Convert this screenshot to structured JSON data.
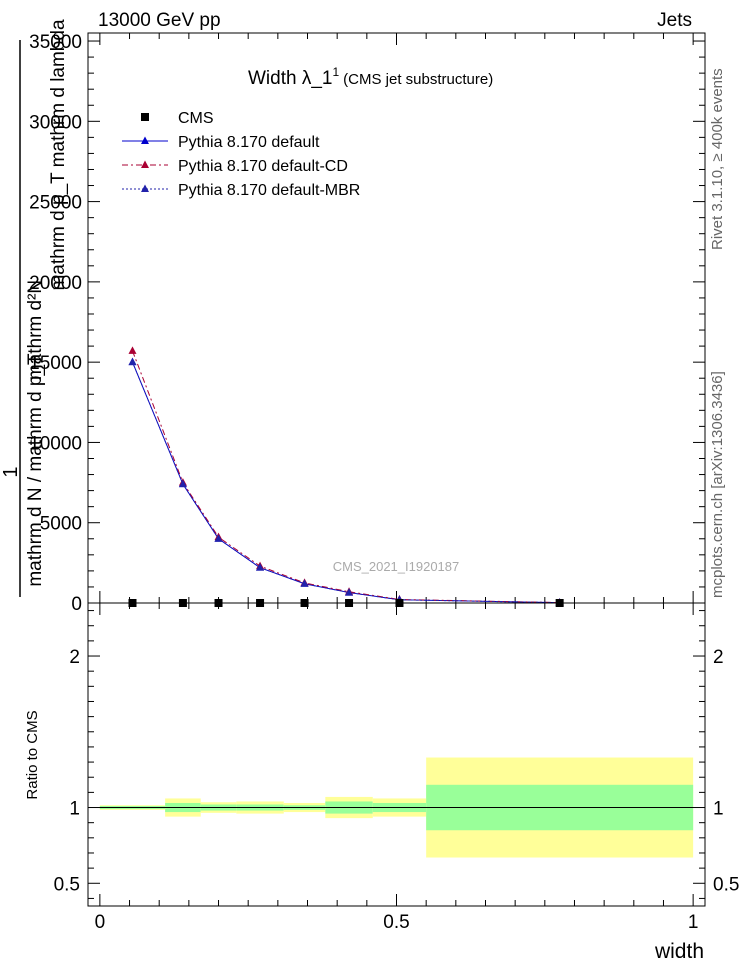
{
  "header": {
    "left": "13000 GeV pp",
    "right": "Jets"
  },
  "side_labels": {
    "rivet": "Rivet 3.1.10, ≥ 400k events",
    "mcplots": "mcplots.cern.ch [arXiv:1306.3436]"
  },
  "watermark": "CMS_2021_I1920187",
  "colors": {
    "cms": "#000000",
    "default": "#0000cc",
    "cd": "#aa0033",
    "mbr": "#2222aa",
    "band_outer": "#ffff99",
    "band_inner": "#99ff99"
  },
  "chart_data": [
    {
      "type": "line",
      "title": "Width λ_1",
      "title_sup": "1",
      "title_note": "(CMS jet substructure)",
      "ylabel_numerator": "mathrm d²N",
      "ylabel_denominator": "mathrm d p_T mathrm d lambda",
      "ylabel_prefix": "1",
      "ylabel_prefix_den": "mathrm d N / mathrm d p_T",
      "xlim": [
        -0.02,
        1.02
      ],
      "ylim": [
        0,
        35500
      ],
      "yticks": [
        0,
        5000,
        10000,
        15000,
        20000,
        25000,
        30000,
        35000
      ],
      "ytick_labels": [
        "0",
        "5000",
        "10000",
        "15000",
        "20000",
        "25000",
        "30000",
        "35000"
      ],
      "legend_position": "top-left",
      "legend": [
        {
          "label": "CMS",
          "marker": "square",
          "color": "#000000",
          "line": "none"
        },
        {
          "label": "Pythia 8.170 default",
          "marker": "triangle",
          "color": "#0000cc",
          "line": "solid"
        },
        {
          "label": "Pythia 8.170 default-CD",
          "marker": "triangle",
          "color": "#aa0033",
          "line": "dashdot"
        },
        {
          "label": "Pythia 8.170 default-MBR",
          "marker": "triangle",
          "color": "#2222aa",
          "line": "dotted"
        }
      ],
      "series": [
        {
          "name": "CMS",
          "x": [
            0.055,
            0.14,
            0.2,
            0.27,
            0.345,
            0.42,
            0.505,
            0.775
          ],
          "y": [
            0,
            0,
            0,
            0,
            0,
            0,
            0,
            0
          ]
        },
        {
          "name": "Pythia 8.170 default",
          "x": [
            0.055,
            0.14,
            0.2,
            0.27,
            0.345,
            0.42,
            0.505,
            0.775
          ],
          "y": [
            15000,
            7400,
            4000,
            2200,
            1200,
            650,
            200,
            20
          ]
        },
        {
          "name": "Pythia 8.170 default-CD",
          "x": [
            0.055,
            0.14,
            0.2,
            0.27,
            0.345,
            0.42,
            0.505,
            0.775
          ],
          "y": [
            15700,
            7500,
            4100,
            2300,
            1250,
            700,
            220,
            25
          ]
        },
        {
          "name": "Pythia 8.170 default-MBR",
          "x": [
            0.055,
            0.14,
            0.2,
            0.27,
            0.345,
            0.42,
            0.505,
            0.775
          ],
          "y": [
            15000,
            7400,
            4000,
            2200,
            1200,
            650,
            200,
            20
          ]
        }
      ]
    },
    {
      "type": "area",
      "xlabel": "width",
      "ylabel": "Ratio to CMS",
      "xlim": [
        -0.02,
        1.02
      ],
      "ylim": [
        0.35,
        2.35
      ],
      "xticks": [
        0,
        0.5,
        1
      ],
      "xtick_labels": [
        "0",
        "0.5",
        "1"
      ],
      "yticks": [
        0.5,
        1,
        2
      ],
      "ytick_labels": [
        "0.5",
        "1",
        "2"
      ],
      "bins": [
        {
          "x_low": 0.0,
          "x_high": 0.11,
          "outer_low": 0.985,
          "outer_high": 1.015,
          "inner_low": 0.99,
          "inner_high": 1.01
        },
        {
          "x_low": 0.11,
          "x_high": 0.17,
          "outer_low": 0.94,
          "outer_high": 1.06,
          "inner_low": 0.97,
          "inner_high": 1.03
        },
        {
          "x_low": 0.17,
          "x_high": 0.23,
          "outer_low": 0.965,
          "outer_high": 1.035,
          "inner_low": 0.98,
          "inner_high": 1.02
        },
        {
          "x_low": 0.23,
          "x_high": 0.31,
          "outer_low": 0.96,
          "outer_high": 1.04,
          "inner_low": 0.98,
          "inner_high": 1.02
        },
        {
          "x_low": 0.31,
          "x_high": 0.38,
          "outer_low": 0.97,
          "outer_high": 1.03,
          "inner_low": 0.985,
          "inner_high": 1.015
        },
        {
          "x_low": 0.38,
          "x_high": 0.46,
          "outer_low": 0.93,
          "outer_high": 1.07,
          "inner_low": 0.96,
          "inner_high": 1.04
        },
        {
          "x_low": 0.46,
          "x_high": 0.55,
          "outer_low": 0.94,
          "outer_high": 1.06,
          "inner_low": 0.97,
          "inner_high": 1.03
        },
        {
          "x_low": 0.55,
          "x_high": 1.0,
          "outer_low": 0.67,
          "outer_high": 1.33,
          "inner_low": 0.85,
          "inner_high": 1.15
        }
      ],
      "reference": 1.0
    }
  ]
}
